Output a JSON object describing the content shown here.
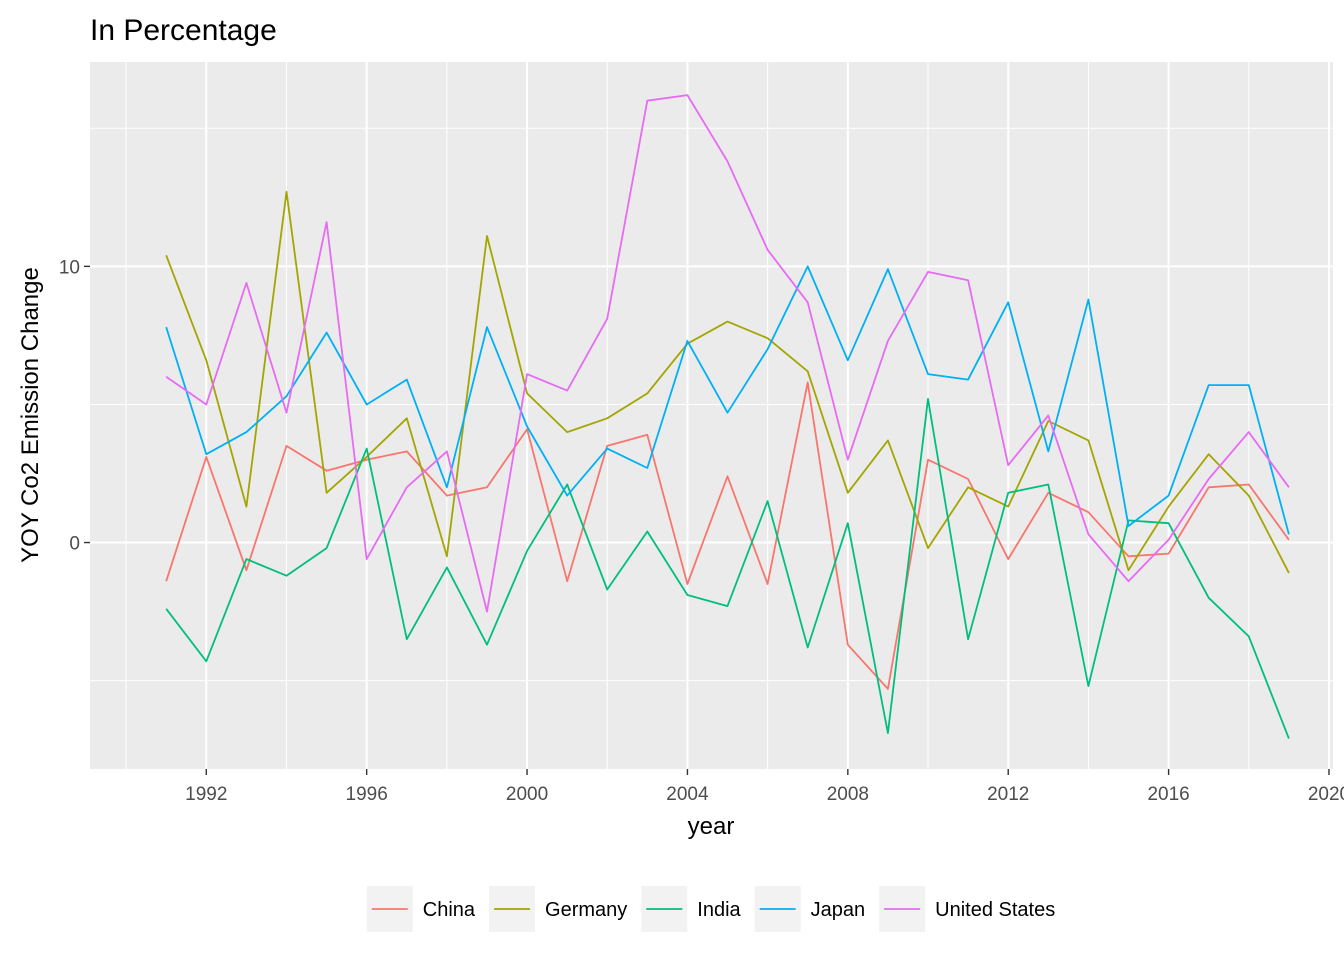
{
  "chart_data": {
    "type": "line",
    "title": "In Percentage",
    "xlabel": "year",
    "ylabel": "YOY Co2 Emission Change",
    "xlim": [
      1989.1,
      2020.1
    ],
    "ylim": [
      -8.2,
      17.4
    ],
    "x_ticks": [
      1992,
      1996,
      2000,
      2004,
      2008,
      2012,
      2016,
      2020
    ],
    "x_tick_labels": [
      "1992",
      "1996",
      "2000",
      "2004",
      "2008",
      "2012",
      "2016",
      "2020"
    ],
    "y_ticks": [
      0,
      10
    ],
    "y_tick_labels": [
      "0",
      "10"
    ],
    "grid": true,
    "legend_position": "bottom",
    "x": [
      1991,
      1992,
      1993,
      1994,
      1995,
      1996,
      1997,
      1998,
      1999,
      2000,
      2001,
      2002,
      2003,
      2004,
      2005,
      2006,
      2007,
      2008,
      2009,
      2010,
      2011,
      2012,
      2013,
      2014,
      2015,
      2016,
      2017,
      2018,
      2019
    ],
    "series": [
      {
        "name": "China",
        "color": "#F8766D",
        "values": [
          -1.4,
          3.1,
          -1.0,
          3.5,
          2.6,
          3.0,
          3.3,
          1.7,
          2.0,
          4.1,
          -1.4,
          3.5,
          3.9,
          -1.5,
          2.4,
          -1.5,
          5.8,
          -3.7,
          -5.3,
          3.0,
          2.3,
          -0.6,
          1.8,
          1.1,
          -0.5,
          -0.4,
          2.0,
          2.1,
          0.1
        ]
      },
      {
        "name": "Germany",
        "color": "#A3A500",
        "values": [
          10.4,
          6.6,
          1.3,
          12.7,
          1.8,
          3.1,
          4.5,
          -0.5,
          11.1,
          5.4,
          4.0,
          4.5,
          5.4,
          7.2,
          8.0,
          7.4,
          6.2,
          1.8,
          3.7,
          -0.2,
          2.0,
          1.3,
          4.4,
          3.7,
          -1.0,
          1.3,
          3.2,
          1.7,
          -1.1
        ]
      },
      {
        "name": "India",
        "color": "#00BF7D",
        "values": [
          -2.4,
          -4.3,
          -0.6,
          -1.2,
          -0.2,
          3.4,
          -3.5,
          -0.9,
          -3.7,
          -0.3,
          2.1,
          -1.7,
          0.4,
          -1.9,
          -2.3,
          1.5,
          -3.8,
          0.7,
          -6.9,
          5.2,
          -3.5,
          1.8,
          2.1,
          -5.2,
          0.8,
          0.7,
          -2.0,
          -3.4,
          -7.1
        ]
      },
      {
        "name": "Japan",
        "color": "#00B0F6",
        "values": [
          7.8,
          3.2,
          4.0,
          5.3,
          7.6,
          5.0,
          5.9,
          2.0,
          7.8,
          4.2,
          1.7,
          3.4,
          2.7,
          7.3,
          4.7,
          7.0,
          10.0,
          6.6,
          9.9,
          6.1,
          5.9,
          8.7,
          3.3,
          8.8,
          0.6,
          1.7,
          5.7,
          5.7,
          0.3
        ]
      },
      {
        "name": "United States",
        "color": "#E76BF3",
        "values": [
          6.0,
          5.0,
          9.4,
          4.7,
          11.6,
          -0.6,
          2.0,
          3.3,
          -2.5,
          6.1,
          5.5,
          8.1,
          16.0,
          16.2,
          13.8,
          10.6,
          8.7,
          3.0,
          7.3,
          9.8,
          9.5,
          2.8,
          4.6,
          0.3,
          -1.4,
          0.1,
          2.3,
          4.0,
          2.0
        ]
      }
    ]
  }
}
